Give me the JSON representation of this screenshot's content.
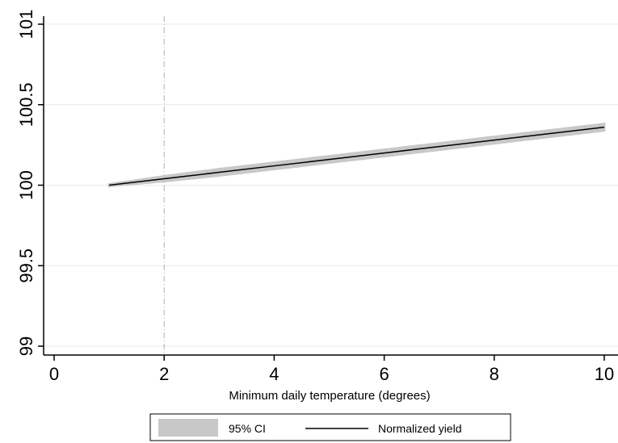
{
  "chart_data": {
    "type": "line",
    "xlabel": "Minimum daily temperature (degrees)",
    "ylabel": "",
    "xlim": [
      0,
      10
    ],
    "ylim": [
      99,
      101
    ],
    "x_ticks": [
      "0",
      "2",
      "4",
      "6",
      "8",
      "10"
    ],
    "y_ticks": [
      "99",
      "99.5",
      "100",
      "100.5",
      "101"
    ],
    "reference_line_x": 2,
    "grid": "horizontal",
    "legend_position": "bottom",
    "series": [
      {
        "name": "Normalized yield",
        "x": [
          1,
          2,
          3,
          4,
          5,
          6,
          7,
          8,
          9,
          10
        ],
        "y": [
          100.0,
          100.04,
          100.08,
          100.12,
          100.16,
          100.2,
          100.24,
          100.28,
          100.32,
          100.36
        ]
      }
    ],
    "ci": {
      "name": "95% CI",
      "x": [
        1,
        2,
        3,
        4,
        5,
        6,
        7,
        8,
        9,
        10
      ],
      "lower": [
        99.995,
        100.025,
        100.06,
        100.1,
        100.14,
        100.18,
        100.22,
        100.26,
        100.3,
        100.34
      ],
      "upper": [
        100.005,
        100.055,
        100.1,
        100.14,
        100.18,
        100.22,
        100.26,
        100.3,
        100.34,
        100.38
      ]
    },
    "colors": {
      "line": "#000000",
      "ci_fill": "#c8c8c8",
      "grid": "#e3ecef",
      "reference": "#b0b0b0"
    }
  }
}
